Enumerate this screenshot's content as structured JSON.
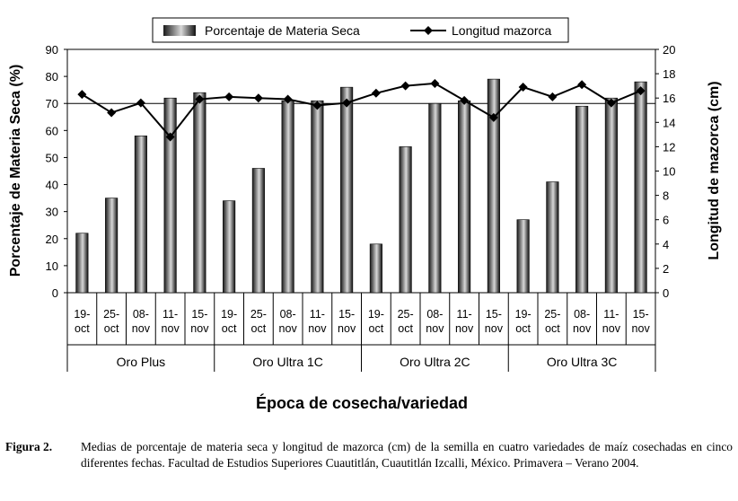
{
  "chart_data": {
    "type": "bar",
    "legend": {
      "placement": "top",
      "bar_label": "Porcentaje de Materia Seca",
      "line_label": "Longitud mazorca"
    },
    "ylabel_left": "Porcentaje de Materia Seca (%)",
    "ylabel_right": "Longitud de mazorca (cm)",
    "xlabel": "Época de cosecha/variedad",
    "ylim_left": [
      0,
      90
    ],
    "yticks_left": [
      "0",
      "10",
      "20",
      "30",
      "40",
      "50",
      "60",
      "70",
      "80",
      "90"
    ],
    "ylim_right": [
      0,
      20
    ],
    "yticks_right": [
      "0",
      "2",
      "4",
      "6",
      "8",
      "10",
      "12",
      "14",
      "16",
      "18",
      "20"
    ],
    "grid": "horizontal at 70% only",
    "categories": [
      {
        "line1": "19-",
        "line2": "oct"
      },
      {
        "line1": "25-",
        "line2": "oct"
      },
      {
        "line1": "08-",
        "line2": "nov"
      },
      {
        "line1": "11-",
        "line2": "nov"
      },
      {
        "line1": "15-",
        "line2": "nov"
      },
      {
        "line1": "19-",
        "line2": "oct"
      },
      {
        "line1": "25-",
        "line2": "oct"
      },
      {
        "line1": "08-",
        "line2": "nov"
      },
      {
        "line1": "11-",
        "line2": "nov"
      },
      {
        "line1": "15-",
        "line2": "nov"
      },
      {
        "line1": "19-",
        "line2": "oct"
      },
      {
        "line1": "25-",
        "line2": "oct"
      },
      {
        "line1": "08-",
        "line2": "nov"
      },
      {
        "line1": "11-",
        "line2": "nov"
      },
      {
        "line1": "15-",
        "line2": "nov"
      },
      {
        "line1": "19-",
        "line2": "oct"
      },
      {
        "line1": "25-",
        "line2": "oct"
      },
      {
        "line1": "08-",
        "line2": "nov"
      },
      {
        "line1": "11-",
        "line2": "nov"
      },
      {
        "line1": "15-",
        "line2": "nov"
      }
    ],
    "groups": [
      "Oro Plus",
      "Oro Ultra 1C",
      "Oro Ultra 2C",
      "Oro Ultra 3C"
    ],
    "group_size": 5,
    "series": [
      {
        "name": "Porcentaje de Materia Seca",
        "axis": "left",
        "kind": "bar",
        "values": [
          22,
          35,
          58,
          72,
          74,
          34,
          46,
          71,
          71,
          76,
          18,
          54,
          70,
          71,
          79,
          27,
          41,
          69,
          72,
          78
        ]
      },
      {
        "name": "Longitud mazorca",
        "axis": "right",
        "kind": "line",
        "values": [
          16.3,
          14.8,
          15.6,
          12.8,
          15.9,
          16.1,
          16.0,
          15.9,
          15.4,
          15.6,
          16.4,
          17.0,
          17.2,
          15.8,
          14.4,
          16.9,
          16.1,
          17.1,
          15.6,
          16.6
        ]
      }
    ],
    "colors": {
      "bar_dark": "#111111",
      "bar_light": "#d8d8d8",
      "line": "#000000"
    }
  },
  "caption": {
    "label": "Figura 2.",
    "text": "Medias de porcentaje de materia seca y longitud de mazorca (cm) de la semilla en cuatro variedades de maíz cosechadas en cinco diferentes fechas. Facultad de Estudios Superiores Cuautitlán, Cuautitlán Izcalli, México. Primavera – Verano 2004."
  }
}
